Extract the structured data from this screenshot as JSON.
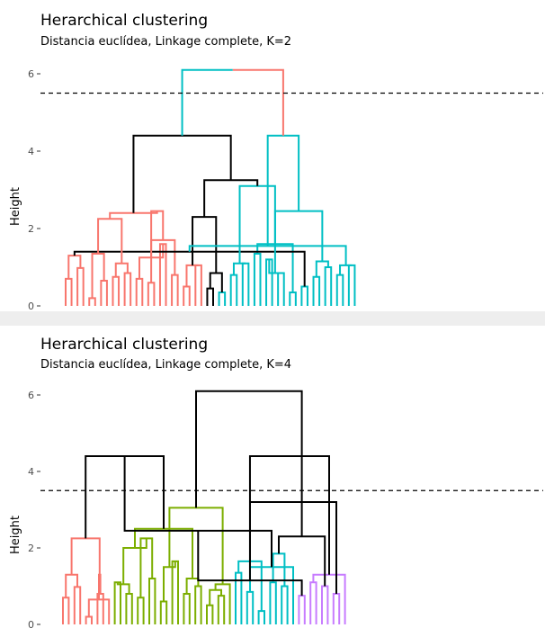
{
  "chart_data": [
    {
      "type": "dendrogram",
      "title": "Herarchical clustering",
      "subtitle": "Distancia euclídea, Linkage  complete, K=2",
      "ylabel": "Height",
      "yticks": [
        0,
        2,
        4,
        6
      ],
      "cut_height": 5.5,
      "n_leaves": 50,
      "clusters": [
        {
          "leaves": [
            0,
            24
          ],
          "color": "#F8766D"
        },
        {
          "leaves": [
            25,
            49
          ],
          "color": "#00BFC4"
        }
      ],
      "root_color": "split",
      "merges": [
        {
          "left": 0,
          "right": 1,
          "h": 0.7
        },
        {
          "left": 2,
          "right": 3,
          "h": 0.98
        },
        {
          "left": 4,
          "right": 5,
          "h": 0.2
        },
        {
          "left": 6,
          "right": 7,
          "h": 0.65
        },
        {
          "left": 8,
          "right": 9,
          "h": 0.75
        },
        {
          "left": 10,
          "right": 11,
          "h": 0.85
        },
        {
          "left": 12,
          "right": 13,
          "h": 0.7
        },
        {
          "left": 14,
          "right": 15,
          "h": 0.6
        },
        {
          "left": 16,
          "right": 17,
          "h": 1.6
        },
        {
          "left": 18,
          "right": 19,
          "h": 0.8
        },
        {
          "left": 20,
          "right": 21,
          "h": 0.5
        },
        {
          "left": 22,
          "right": 23,
          "h": 1.05
        },
        {
          "left": 24,
          "right": 25,
          "h": 0.45
        },
        {
          "left": 26,
          "right": 27,
          "h": 0.35
        },
        {
          "left": 28,
          "right": 29,
          "h": 0.8
        },
        {
          "left": 30,
          "right": 31,
          "h": 1.1
        },
        {
          "left": 32,
          "right": 33,
          "h": 1.35
        },
        {
          "left": 34,
          "right": 35,
          "h": 1.2
        },
        {
          "left": 36,
          "right": 37,
          "h": 0.85
        },
        {
          "left": 38,
          "right": 39,
          "h": 0.35
        },
        {
          "left": 40,
          "right": 41,
          "h": 0.5
        },
        {
          "left": 42,
          "right": 43,
          "h": 0.75
        },
        {
          "left": 44,
          "right": 45,
          "h": 1.0
        },
        {
          "left": 46,
          "right": 47,
          "h": 0.8
        },
        {
          "left": 48,
          "right": 49,
          "h": 1.05
        },
        {
          "left": 50,
          "right": 51,
          "h": 1.3
        },
        {
          "left": 52,
          "right": 53,
          "h": 1.35
        },
        {
          "left": 54,
          "right": 55,
          "h": 1.1
        },
        {
          "left": 56,
          "right": 58,
          "h": 1.25
        },
        {
          "left": 57,
          "right": 59,
          "h": 1.7
        },
        {
          "left": 60,
          "right": 61,
          "h": 1.05
        },
        {
          "left": 62,
          "right": 63,
          "h": 0.85
        },
        {
          "left": 64,
          "right": 65,
          "h": 1.1
        },
        {
          "left": 67,
          "right": 68,
          "h": 0.85
        },
        {
          "left": 66,
          "right": 69,
          "h": 1.6
        },
        {
          "left": 71,
          "right": 72,
          "h": 1.15
        },
        {
          "left": 73,
          "right": 74,
          "h": 1.05
        },
        {
          "left": 75,
          "right": 70,
          "h": 1.4
        },
        {
          "left": 76,
          "right": 77,
          "h": 2.25
        },
        {
          "left": 78,
          "right": 79,
          "h": 2.45
        },
        {
          "left": 80,
          "right": 81,
          "h": 2.3
        },
        {
          "left": 82,
          "right": 83,
          "h": 3.1
        },
        {
          "left": 84,
          "right": 85,
          "h": 2.45
        },
        {
          "left": 86,
          "right": 87,
          "h": 1.55
        },
        {
          "left": 88,
          "right": 89,
          "h": 2.4
        },
        {
          "left": 90,
          "right": 91,
          "h": 3.25
        },
        {
          "left": 92,
          "right": 93,
          "h": 4.4
        },
        {
          "left": 94,
          "right": 95,
          "h": 4.4
        },
        {
          "left": 96,
          "right": 97,
          "h": 6.1
        }
      ]
    },
    {
      "type": "dendrogram",
      "title": "Herarchical clustering",
      "subtitle": "Distancia euclídea, Linkage complete, K=4",
      "ylabel": "Height",
      "yticks": [
        0,
        2,
        4,
        6
      ],
      "cut_height": 3.5,
      "n_leaves": 50,
      "clusters": [
        {
          "leaves": [
            0,
            8
          ],
          "color": "#F8766D"
        },
        {
          "leaves": [
            9,
            29
          ],
          "color": "#7CAE00"
        },
        {
          "leaves": [
            30,
            40
          ],
          "color": "#00BFC4"
        },
        {
          "leaves": [
            41,
            49
          ],
          "color": "#C77CFF"
        }
      ],
      "root_color": "#000000",
      "merges": [
        {
          "left": 0,
          "right": 1,
          "h": 0.7
        },
        {
          "left": 2,
          "right": 3,
          "h": 0.98
        },
        {
          "left": 4,
          "right": 5,
          "h": 0.2
        },
        {
          "left": 6,
          "right": 7,
          "h": 0.8
        },
        {
          "left": 50,
          "right": 51,
          "h": 1.3
        },
        {
          "left": 52,
          "right": 8,
          "h": 0.65
        },
        {
          "left": 55,
          "right": 53,
          "h": 1.3
        },
        {
          "left": 54,
          "right": 56,
          "h": 2.25
        },
        {
          "left": 9,
          "right": 10,
          "h": 1.1
        },
        {
          "left": 11,
          "right": 12,
          "h": 0.8
        },
        {
          "left": 13,
          "right": 14,
          "h": 0.7
        },
        {
          "left": 15,
          "right": 16,
          "h": 1.2
        },
        {
          "left": 17,
          "right": 18,
          "h": 0.6
        },
        {
          "left": 19,
          "right": 20,
          "h": 1.65
        },
        {
          "left": 21,
          "right": 22,
          "h": 0.8
        },
        {
          "left": 23,
          "right": 24,
          "h": 1.0
        },
        {
          "left": 25,
          "right": 26,
          "h": 0.5
        },
        {
          "left": 27,
          "right": 28,
          "h": 0.75
        },
        {
          "left": 58,
          "right": 59,
          "h": 1.05
        },
        {
          "left": 60,
          "right": 61,
          "h": 2.25
        },
        {
          "left": 62,
          "right": 63,
          "h": 1.5
        },
        {
          "left": 64,
          "right": 65,
          "h": 1.2
        },
        {
          "left": 66,
          "right": 67,
          "h": 0.9
        },
        {
          "left": 68,
          "right": 69,
          "h": 2.0
        },
        {
          "left": 29,
          "right": 72,
          "h": 1.05
        },
        {
          "left": 71,
          "right": 73,
          "h": 2.5
        },
        {
          "left": 70,
          "right": 74,
          "h": 3.05
        },
        {
          "left": 57,
          "right": 75,
          "h": 4.4
        },
        {
          "left": 30,
          "right": 31,
          "h": 1.35
        },
        {
          "left": 32,
          "right": 33,
          "h": 0.85
        },
        {
          "left": 34,
          "right": 35,
          "h": 0.35
        },
        {
          "left": 36,
          "right": 37,
          "h": 1.1
        },
        {
          "left": 38,
          "right": 39,
          "h": 1.0
        },
        {
          "left": 79,
          "right": 40,
          "h": 1.5
        },
        {
          "left": 78,
          "right": 80,
          "h": 1.65
        },
        {
          "left": 81,
          "right": 82,
          "h": 1.85
        },
        {
          "left": 77,
          "right": 83,
          "h": 2.45
        },
        {
          "left": 41,
          "right": 42,
          "h": 0.75
        },
        {
          "left": 43,
          "right": 44,
          "h": 1.1
        },
        {
          "left": 45,
          "right": 46,
          "h": 1.0
        },
        {
          "left": 47,
          "right": 48,
          "h": 0.8
        },
        {
          "left": 86,
          "right": 87,
          "h": 1.15
        },
        {
          "left": 88,
          "right": 49,
          "h": 1.3
        },
        {
          "left": 85,
          "right": 89,
          "h": 2.3
        },
        {
          "left": 90,
          "right": 84,
          "h": 3.2
        },
        {
          "left": 91,
          "right": 92,
          "h": 4.4
        },
        {
          "left": 76,
          "right": 93,
          "h": 6.1
        }
      ]
    }
  ]
}
